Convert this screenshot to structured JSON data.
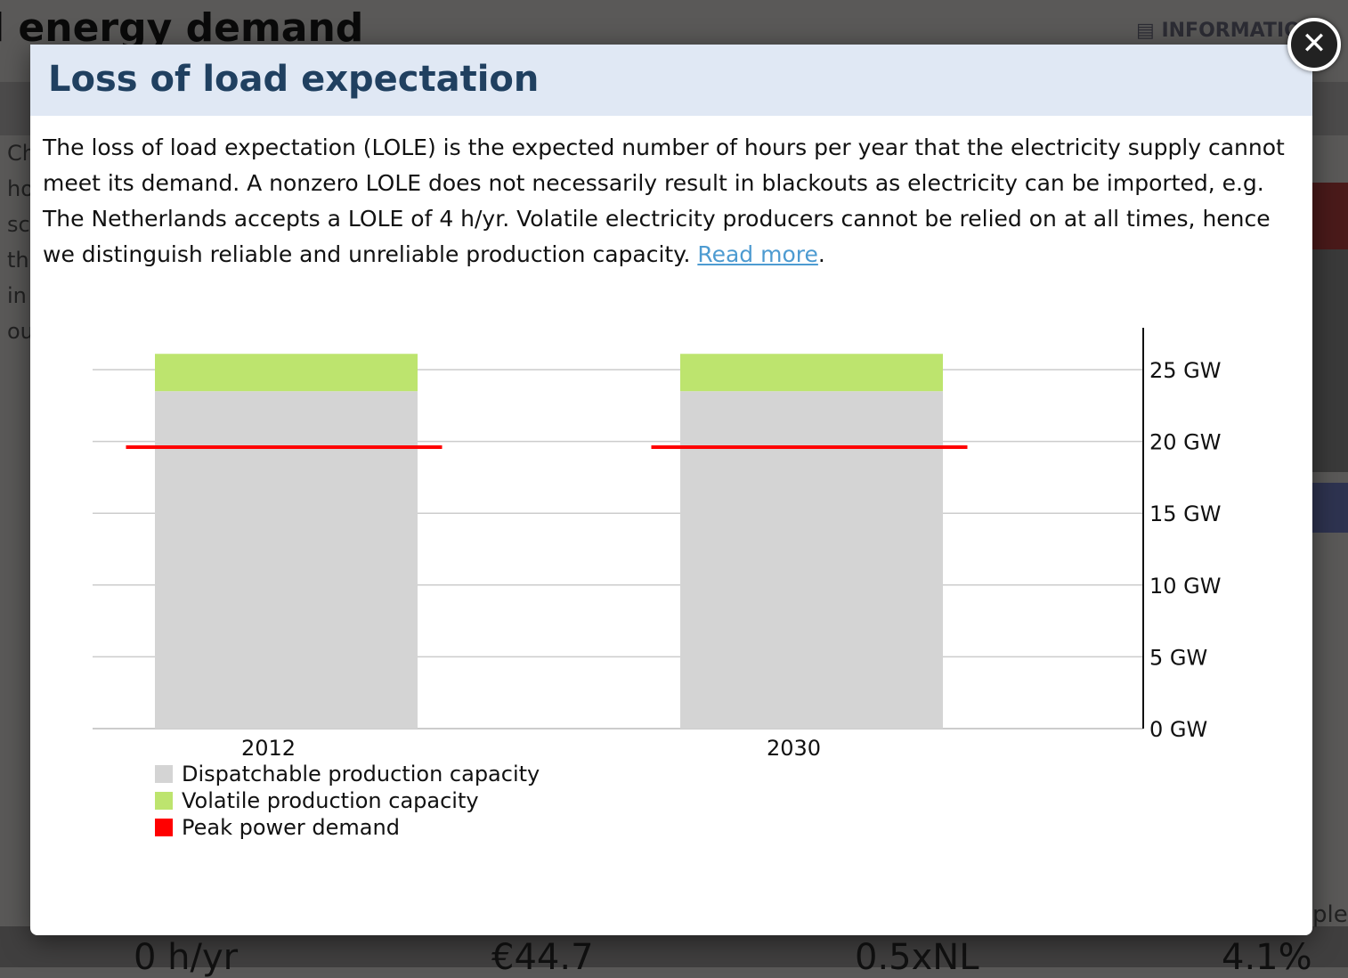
{
  "background": {
    "title": "l energy demand",
    "info_label": "INFORMATIO",
    "side_fragments": [
      "Ch",
      "ho",
      "sc",
      "th",
      "in",
      "ou"
    ],
    "bottom_values": [
      "0 h/yr",
      "€44.7",
      "0.5xNL",
      "4.1%"
    ],
    "right_fragment": "ples"
  },
  "modal": {
    "title": "Loss of load expectation",
    "body": "The loss of load expectation (LOLE) is the expected number of hours per year that the electricity supply cannot meet its demand. A nonzero LOLE does not necessarily result in blackouts as electricity can be imported, e.g. The Netherlands accepts a LOLE of 4 h/yr. Volatile electricity producers cannot be relied on at all times, hence we distinguish reliable and unreliable production capacity. ",
    "link": "Read more",
    "link_suffix": ".",
    "close_icon": "close-icon"
  },
  "chart_data": {
    "type": "bar",
    "stacked": true,
    "categories": [
      "2012",
      "2030"
    ],
    "series": [
      {
        "name": "Dispatchable production capacity",
        "values": [
          23.5,
          23.5
        ],
        "color": "#d4d4d4"
      },
      {
        "name": "Volatile production capacity",
        "values": [
          2.6,
          2.6
        ],
        "color": "#bde46e"
      }
    ],
    "lines": [
      {
        "name": "Peak power demand",
        "values": [
          19.6,
          19.6
        ],
        "color": "#ff0000"
      }
    ],
    "yticks": [
      "0 GW",
      "5 GW",
      "10 GW",
      "15 GW",
      "20 GW",
      "25 GW"
    ],
    "ylim": [
      0,
      28
    ],
    "grid": true,
    "yaxis_side": "right",
    "legend_placement": "bottom-left"
  }
}
